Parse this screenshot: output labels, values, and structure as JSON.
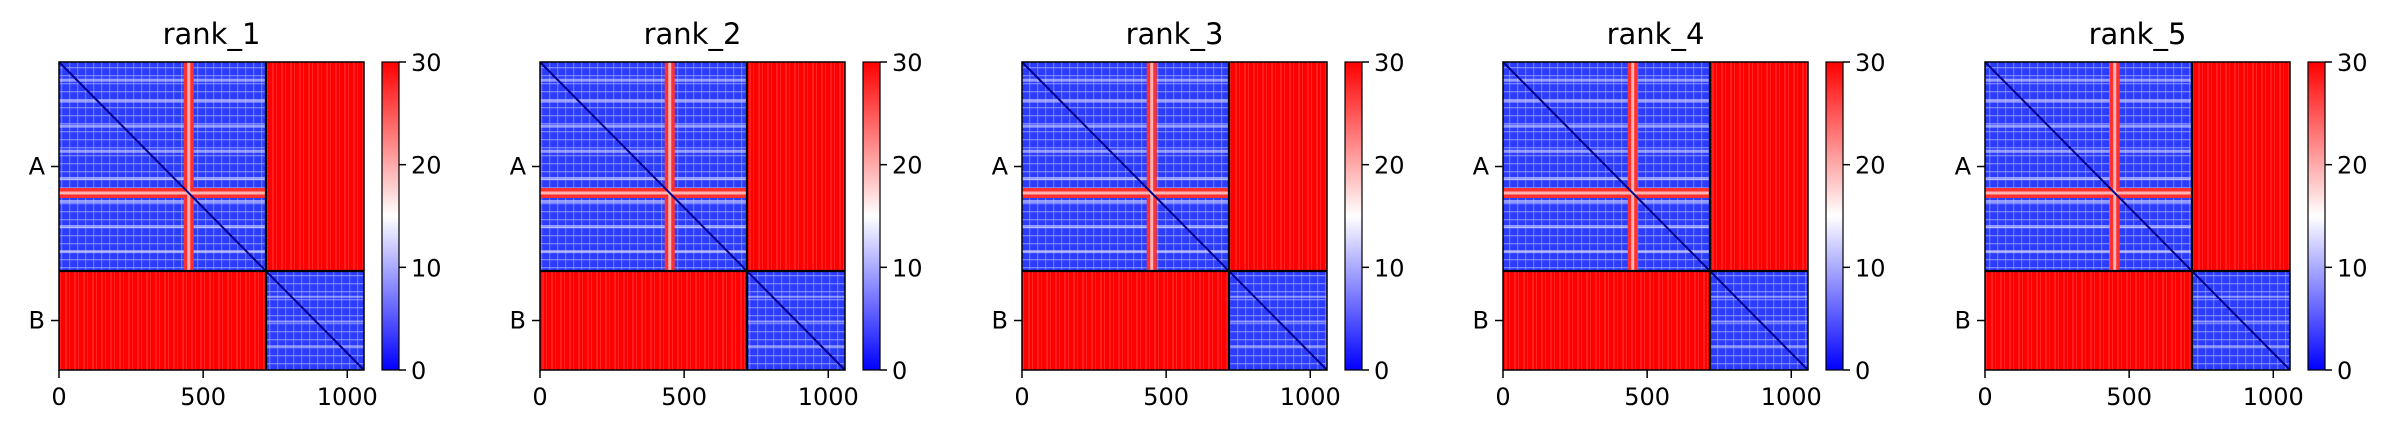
{
  "chart_data": [
    {
      "type": "heatmap",
      "title": "rank_1",
      "x_ticks": [
        0,
        500,
        1000
      ],
      "xlim": [
        0,
        1058
      ],
      "chains": [
        {
          "name": "A",
          "start": 0,
          "end": 718
        },
        {
          "name": "B",
          "start": 718,
          "end": 1058
        }
      ],
      "domain_break_A": 450,
      "colorbar": {
        "min": 0,
        "max": 30,
        "ticks": [
          0,
          10,
          20,
          30
        ]
      },
      "colormap": [
        "#0000ff",
        "#ffffff",
        "#ff0000"
      ]
    },
    {
      "type": "heatmap",
      "title": "rank_2",
      "x_ticks": [
        0,
        500,
        1000
      ],
      "xlim": [
        0,
        1058
      ],
      "chains": [
        {
          "name": "A",
          "start": 0,
          "end": 718
        },
        {
          "name": "B",
          "start": 718,
          "end": 1058
        }
      ],
      "domain_break_A": 450,
      "colorbar": {
        "min": 0,
        "max": 30,
        "ticks": [
          0,
          10,
          20,
          30
        ]
      },
      "colormap": [
        "#0000ff",
        "#ffffff",
        "#ff0000"
      ]
    },
    {
      "type": "heatmap",
      "title": "rank_3",
      "x_ticks": [
        0,
        500,
        1000
      ],
      "xlim": [
        0,
        1058
      ],
      "chains": [
        {
          "name": "A",
          "start": 0,
          "end": 718
        },
        {
          "name": "B",
          "start": 718,
          "end": 1058
        }
      ],
      "domain_break_A": 450,
      "colorbar": {
        "min": 0,
        "max": 30,
        "ticks": [
          0,
          10,
          20,
          30
        ]
      },
      "colormap": [
        "#0000ff",
        "#ffffff",
        "#ff0000"
      ]
    },
    {
      "type": "heatmap",
      "title": "rank_4",
      "x_ticks": [
        0,
        500,
        1000
      ],
      "xlim": [
        0,
        1058
      ],
      "chains": [
        {
          "name": "A",
          "start": 0,
          "end": 718
        },
        {
          "name": "B",
          "start": 718,
          "end": 1058
        }
      ],
      "domain_break_A": 450,
      "colorbar": {
        "min": 0,
        "max": 30,
        "ticks": [
          0,
          10,
          20,
          30
        ]
      },
      "colormap": [
        "#0000ff",
        "#ffffff",
        "#ff0000"
      ]
    },
    {
      "type": "heatmap",
      "title": "rank_5",
      "x_ticks": [
        0,
        500,
        1000
      ],
      "xlim": [
        0,
        1058
      ],
      "chains": [
        {
          "name": "A",
          "start": 0,
          "end": 718
        },
        {
          "name": "B",
          "start": 718,
          "end": 1058
        }
      ],
      "domain_break_A": 450,
      "colorbar": {
        "min": 0,
        "max": 30,
        "ticks": [
          0,
          10,
          20,
          30
        ]
      },
      "colormap": [
        "#0000ff",
        "#ffffff",
        "#ff0000"
      ]
    }
  ]
}
